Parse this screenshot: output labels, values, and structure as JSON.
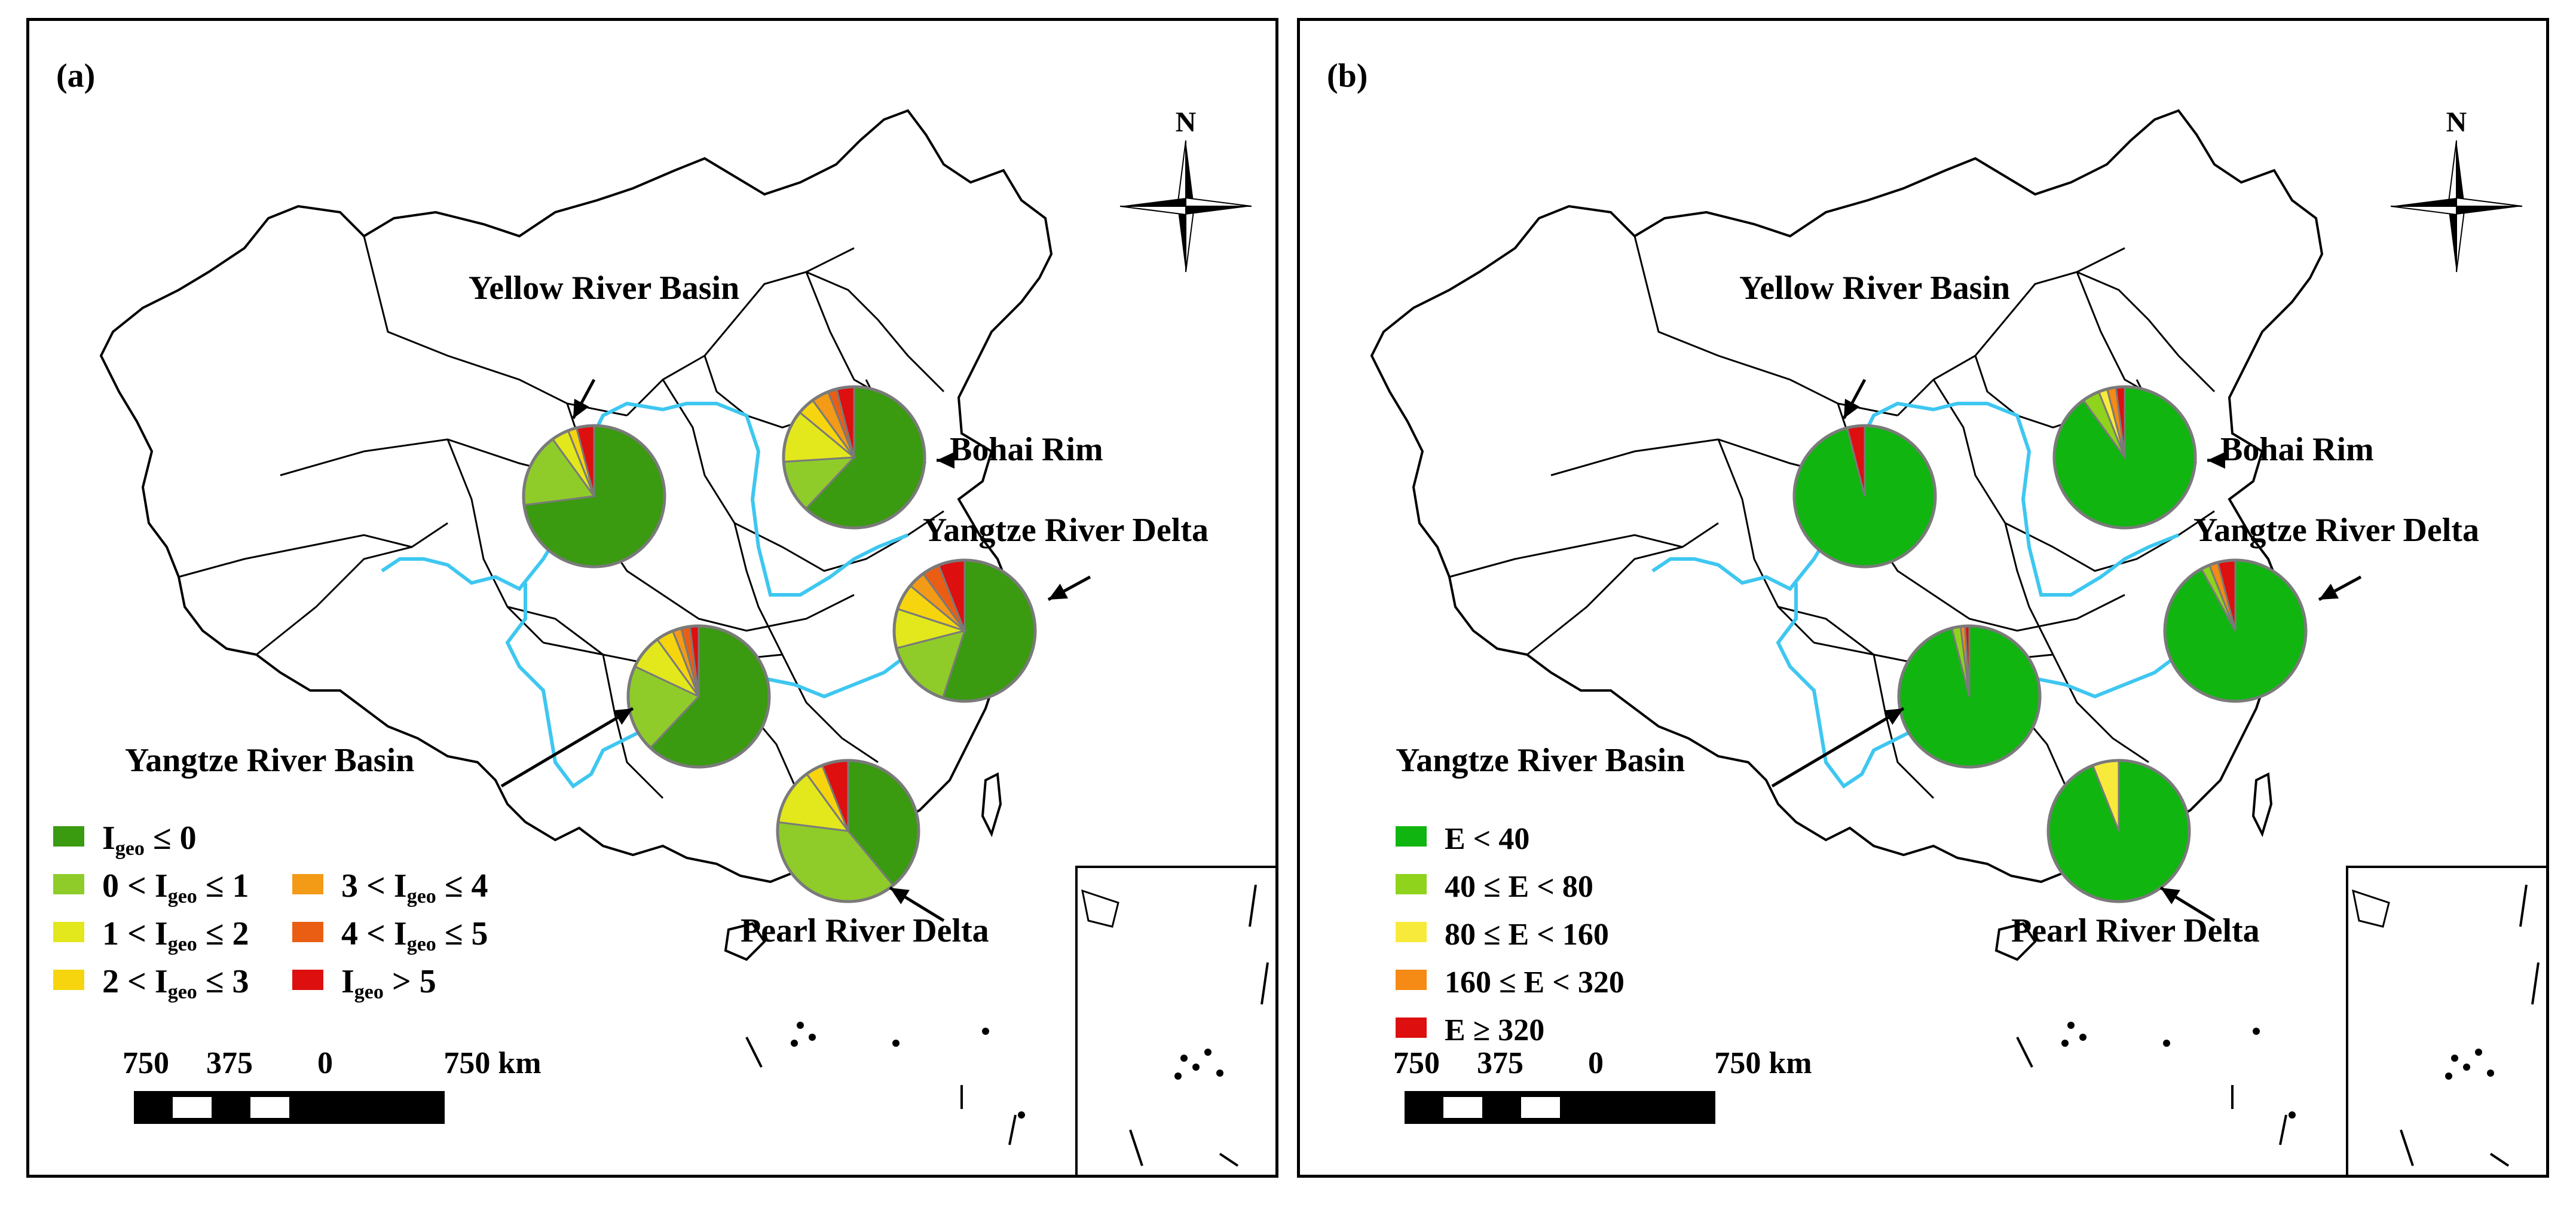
{
  "panels": [
    {
      "label": "(a)",
      "compass": "N",
      "regions": [
        {
          "name": "Yellow River Basin",
          "slices": [
            0.73,
            0.17,
            0.04,
            0.02,
            0.0,
            0.0,
            0.04
          ]
        },
        {
          "name": "Bohai Rim",
          "slices": [
            0.62,
            0.12,
            0.12,
            0.04,
            0.04,
            0.02,
            0.04
          ]
        },
        {
          "name": "Yangtze River Delta",
          "slices": [
            0.55,
            0.16,
            0.09,
            0.06,
            0.04,
            0.04,
            0.06
          ]
        },
        {
          "name": "Yangtze River Basin",
          "slices": [
            0.62,
            0.2,
            0.08,
            0.04,
            0.02,
            0.02,
            0.02
          ]
        },
        {
          "name": "Pearl River Delta",
          "slices": [
            0.39,
            0.38,
            0.13,
            0.04,
            0.0,
            0.0,
            0.06
          ]
        }
      ],
      "legend": [
        {
          "text": "I",
          "sub": "geo",
          "rest": " ≤ 0",
          "color": "#3a9a10"
        },
        {
          "text": "0 < I",
          "sub": "geo",
          "rest": " ≤ 1",
          "color": "#8fcc2a"
        },
        {
          "text": "1 < I",
          "sub": "geo",
          "rest": " ≤ 2",
          "color": "#e2e81c"
        },
        {
          "text": "2 < I",
          "sub": "geo",
          "rest": " ≤ 3",
          "color": "#f6d50e"
        },
        {
          "text": "3 < I",
          "sub": "geo",
          "rest": " ≤ 4",
          "color": "#f39a17"
        },
        {
          "text": "4 < I",
          "sub": "geo",
          "rest": " ≤ 5",
          "color": "#ea5e14"
        },
        {
          "text": "I",
          "sub": "geo",
          "rest": " > 5",
          "color": "#dd0f0f"
        }
      ],
      "scale": [
        "750",
        "375",
        "0",
        "750 km"
      ]
    },
    {
      "label": "(b)",
      "compass": "N",
      "regions": [
        {
          "name": "Yellow River Basin",
          "slices": [
            0.96,
            0.0,
            0.0,
            0.0,
            0.04
          ]
        },
        {
          "name": "Bohai Rim",
          "slices": [
            0.9,
            0.04,
            0.02,
            0.02,
            0.02
          ]
        },
        {
          "name": "Yangtze River Delta",
          "slices": [
            0.92,
            0.02,
            0.0,
            0.02,
            0.04
          ]
        },
        {
          "name": "Yangtze River Basin",
          "slices": [
            0.96,
            0.02,
            0.0,
            0.01,
            0.01
          ]
        },
        {
          "name": "Pearl River Delta",
          "slices": [
            0.94,
            0.0,
            0.06,
            0.0,
            0.0
          ]
        }
      ],
      "legend": [
        {
          "text": "E < 40",
          "color": "#10b510"
        },
        {
          "text": "40 ≤ E < 80",
          "color": "#8fd31d"
        },
        {
          "text": "80 ≤ E < 160",
          "color": "#f8ea3a"
        },
        {
          "text": "160 ≤ E < 320",
          "color": "#f58a14"
        },
        {
          "text": "E ≥ 320",
          "color": "#dd0f0f"
        }
      ],
      "scale": [
        "750",
        "375",
        "0",
        "750 km"
      ]
    }
  ],
  "colors": {
    "river": "#3ec7f0",
    "pie_edge": "#7a7a7a",
    "border": "#000000"
  }
}
